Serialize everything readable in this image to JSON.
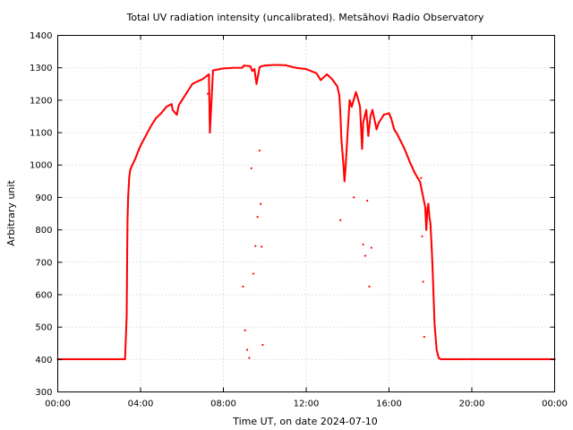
{
  "chart_data": {
    "type": "scatter",
    "title": "Total UV radiation intensity (uncalibrated). Metsähovi Radio Observatory",
    "xlabel": "Time UT, on date 2024-07-10",
    "ylabel": "Arbitrary unit",
    "xlim": [
      0,
      24
    ],
    "ylim": [
      300,
      1400
    ],
    "xticks": [
      {
        "value": 0,
        "label": "00:00"
      },
      {
        "value": 4,
        "label": "04:00"
      },
      {
        "value": 8,
        "label": "08:00"
      },
      {
        "value": 12,
        "label": "12:00"
      },
      {
        "value": 16,
        "label": "16:00"
      },
      {
        "value": 20,
        "label": "20:00"
      },
      {
        "value": 24,
        "label": "00:00"
      }
    ],
    "yticks": [
      {
        "value": 300,
        "label": "300"
      },
      {
        "value": 400,
        "label": "400"
      },
      {
        "value": 500,
        "label": "500"
      },
      {
        "value": 600,
        "label": "600"
      },
      {
        "value": 700,
        "label": "700"
      },
      {
        "value": 800,
        "label": "800"
      },
      {
        "value": 900,
        "label": "900"
      },
      {
        "value": 1000,
        "label": "1000"
      },
      {
        "value": 1100,
        "label": "1100"
      },
      {
        "value": 1200,
        "label": "1200"
      },
      {
        "value": 1300,
        "label": "1300"
      },
      {
        "value": 1400,
        "label": "1400"
      }
    ],
    "grid": true,
    "marker_color": "#ff0000",
    "series": [
      {
        "x": [
          0,
          1,
          2,
          3,
          3.25,
          3.33,
          3.35,
          3.37,
          3.4,
          3.45,
          3.5,
          3.6,
          3.75,
          3.9,
          4.0,
          4.25,
          4.5,
          4.75,
          5.0,
          5.25,
          5.5,
          5.55,
          5.75,
          5.85,
          6.0,
          6.25,
          6.5,
          6.75,
          7.0,
          7.3,
          7.35,
          7.5,
          8.0,
          8.5,
          8.9,
          9.0,
          9.3,
          9.4,
          9.5,
          9.6,
          9.75,
          9.85,
          10.0,
          10.5,
          11.0,
          11.5,
          12.0,
          12.5,
          12.7,
          13.0,
          13.25,
          13.5,
          13.6,
          13.65,
          13.7,
          13.8,
          13.85,
          13.9,
          14.0,
          14.1,
          14.2,
          14.4,
          14.5,
          14.6,
          14.7,
          14.75,
          14.9,
          15.0,
          15.1,
          15.2,
          15.4,
          15.5,
          15.75,
          16.0,
          16.1,
          16.25,
          16.4,
          16.5,
          16.75,
          17.0,
          17.25,
          17.5,
          17.75,
          17.8,
          17.85,
          17.9,
          17.95,
          18.0,
          18.05,
          18.1,
          18.2,
          18.3,
          18.4,
          18.5,
          19.0,
          20.0,
          21.0,
          22.0,
          23.0,
          24.0
        ],
        "y": [
          401,
          401,
          401,
          401,
          401,
          535,
          697,
          830,
          900,
          960,
          985,
          1000,
          1020,
          1045,
          1060,
          1090,
          1120,
          1145,
          1160,
          1180,
          1188,
          1170,
          1155,
          1185,
          1200,
          1225,
          1250,
          1258,
          1265,
          1280,
          1100,
          1292,
          1298,
          1300,
          1300,
          1307,
          1305,
          1290,
          1296,
          1250,
          1302,
          1305,
          1307,
          1309,
          1308,
          1300,
          1296,
          1283,
          1262,
          1280,
          1265,
          1243,
          1215,
          1160,
          1080,
          1000,
          950,
          990,
          1100,
          1200,
          1180,
          1225,
          1205,
          1180,
          1050,
          1130,
          1170,
          1090,
          1150,
          1170,
          1110,
          1130,
          1155,
          1160,
          1145,
          1110,
          1095,
          1082,
          1050,
          1010,
          975,
          948,
          870,
          800,
          860,
          880,
          840,
          820,
          760,
          690,
          510,
          430,
          405,
          401,
          401,
          401,
          401,
          401,
          401,
          401
        ]
      },
      {
        "x": [
          7.25,
          8.95,
          9.05,
          9.15,
          9.25,
          9.35,
          9.45,
          9.55,
          9.65,
          9.75,
          9.8,
          9.85,
          9.9,
          13.65,
          14.3,
          14.75,
          14.85,
          14.95,
          15.05,
          15.15,
          17.55,
          17.6,
          17.65,
          17.7
        ],
        "y": [
          1220,
          625,
          490,
          430,
          405,
          990,
          665,
          750,
          840,
          1045,
          880,
          748,
          445,
          830,
          900,
          755,
          720,
          890,
          625,
          745,
          960,
          780,
          640,
          470
        ]
      }
    ]
  }
}
